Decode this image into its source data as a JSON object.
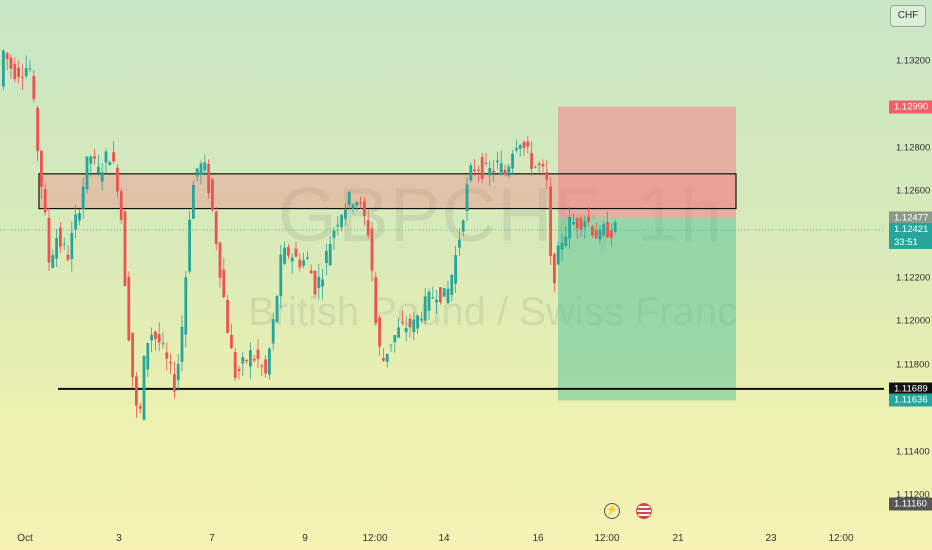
{
  "symbol": "GBPCHF, 1h",
  "symbol_name": "British Pound / Swiss Franc",
  "currency": "CHF",
  "price_axis": {
    "ticks": [
      {
        "label": "1.13200",
        "value": 1.132
      },
      {
        "label": "1.12800",
        "value": 1.128
      },
      {
        "label": "1.12600",
        "value": 1.126
      },
      {
        "label": "1.12200",
        "value": 1.122
      },
      {
        "label": "1.12000",
        "value": 1.12
      },
      {
        "label": "1.11800",
        "value": 1.118
      },
      {
        "label": "1.11400",
        "value": 1.114
      },
      {
        "label": "1.11200",
        "value": 1.112
      }
    ],
    "tags": [
      {
        "label": "1.12990",
        "value": 1.1299,
        "color": "#f0606a"
      },
      {
        "label": "1.12477",
        "value": 1.12477,
        "color": "#8a9a8a"
      },
      {
        "label": "1.12421",
        "value": 1.12421,
        "color": "#26a69a",
        "sublabel": "33:51"
      },
      {
        "label": "1.11689",
        "value": 1.11689,
        "color": "#111111"
      },
      {
        "label": "1.11636",
        "value": 1.11636,
        "color": "#26a69a"
      },
      {
        "label": "1.11160",
        "value": 1.1116,
        "color": "#555555"
      }
    ]
  },
  "time_axis": [
    "Oct",
    "3",
    "7",
    "9",
    "12:00",
    "14",
    "16",
    "12:00",
    "21",
    "23",
    "12:00"
  ],
  "zones": {
    "supply_top": 1.1268,
    "supply_bottom": 1.1252,
    "support_level": 1.11689,
    "stop_loss": 1.1299,
    "entry": 1.12477,
    "take_profit": 1.11636
  },
  "colors": {
    "up": "#26a69a",
    "down": "#ef5350",
    "risk_zone": "#f0808a",
    "reward_zone": "#5cc49a"
  },
  "icons": {
    "event_1": "lightning-icon",
    "event_2": "flag-icon"
  },
  "event_1_glyph": "⚡"
}
